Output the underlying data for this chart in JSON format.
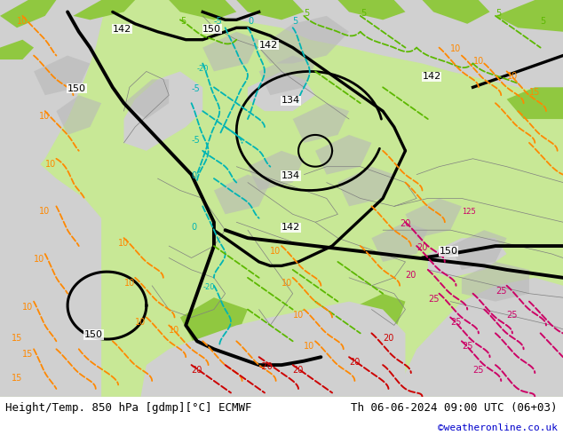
{
  "title_left": "Height/Temp. 850 hPa [gdmp][°C] ECMWF",
  "title_right": "Th 06-06-2024 09:00 UTC (06+03)",
  "credit": "©weatheronline.co.uk",
  "credit_color": "#0000cc",
  "bg_color": "#ffffff",
  "footer_color": "#000000",
  "fig_width": 6.34,
  "fig_height": 4.9,
  "dpi": 100,
  "sea_color": "#d8d8d8",
  "land_light_green": "#c8e89a",
  "land_dark_green": "#90c840",
  "footer_font_size": 9,
  "credit_font_size": 8
}
